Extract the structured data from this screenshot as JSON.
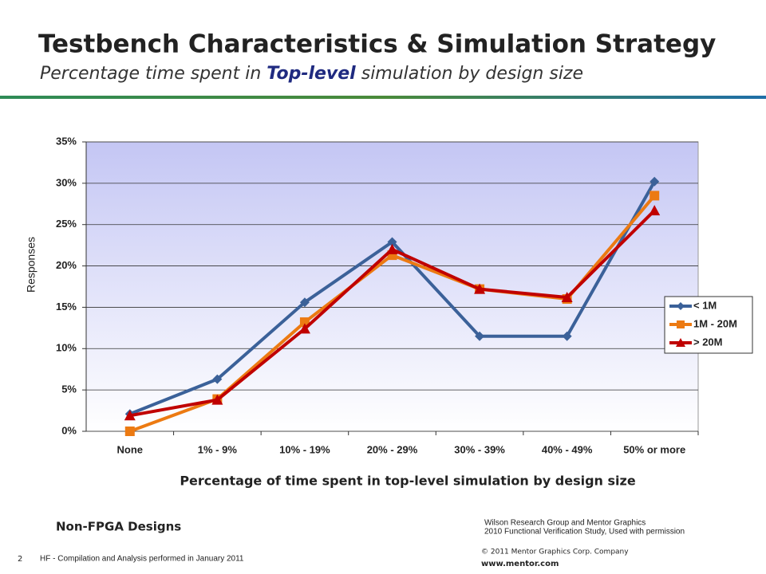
{
  "slide": {
    "title": "Testbench Characteristics & Simulation Strategy",
    "subtitle_parts": [
      "Percentage time spent in ",
      "Top-level",
      " simulation by design size"
    ],
    "note": "Non-FPGA Designs",
    "source_lines": [
      "Wilson Research Group and Mentor Graphics",
      "2010 Functional Verification Study,  Used with permission"
    ],
    "copyright": "© 2011 Mentor Graphics Corp. Company",
    "website": "www.mentor.com",
    "page_number": "2",
    "footer": "HF - Compilation and Analysis performed in January 2011"
  },
  "chart_data": {
    "type": "line",
    "x_label": "Percentage of time spent in top-level simulation by design size",
    "y_label": "Responses",
    "categories": [
      "None",
      "1% - 9%",
      "10% - 19%",
      "20% - 29%",
      "30% - 39%",
      "40% - 49%",
      "50% or more"
    ],
    "series": [
      {
        "name": "< 1M",
        "color": "#3b6199",
        "marker": "diamond",
        "values": [
          2.1,
          6.3,
          15.6,
          22.9,
          11.5,
          11.5,
          30.2
        ]
      },
      {
        "name": "1M - 20M",
        "color": "#ec7a12",
        "marker": "square",
        "values": [
          0,
          3.9,
          13.2,
          21.3,
          17.2,
          16.0,
          28.5
        ]
      },
      {
        "name": "> 20M",
        "color": "#c00000",
        "marker": "triangle",
        "values": [
          1.9,
          3.8,
          12.4,
          22.0,
          17.2,
          16.2,
          26.7
        ]
      }
    ],
    "ylim": [
      0,
      35
    ],
    "yticks": [
      {
        "value": 0,
        "label": "0%"
      },
      {
        "value": 5,
        "label": "5%"
      },
      {
        "value": 10,
        "label": "10%"
      },
      {
        "value": 15,
        "label": "15%"
      },
      {
        "value": 20,
        "label": "20%"
      },
      {
        "value": 25,
        "label": "25%"
      },
      {
        "value": 30,
        "label": "30%"
      },
      {
        "value": 35,
        "label": "35%"
      }
    ],
    "grid": true,
    "legend": "right"
  }
}
